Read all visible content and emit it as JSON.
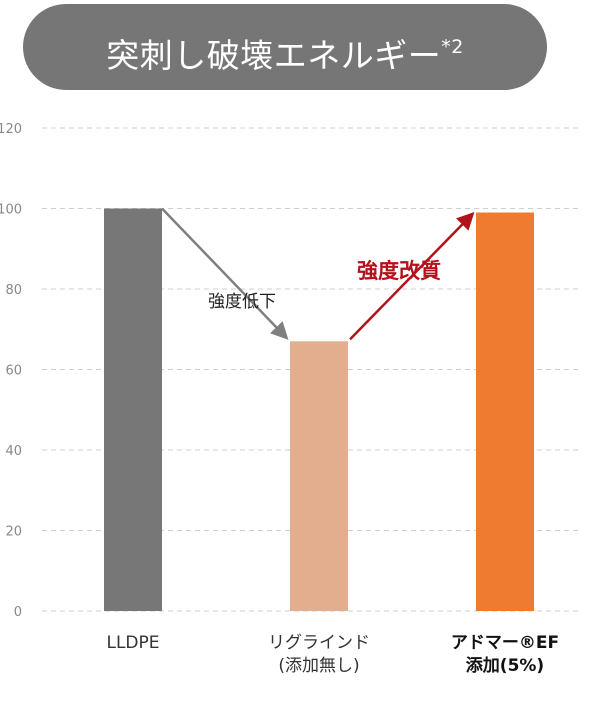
{
  "title": {
    "text": "突刺し破壊エネルギー",
    "note": "*2"
  },
  "chart_data": {
    "type": "bar",
    "categories": [
      [
        "LLDPE"
      ],
      [
        "リグラインド",
        "(添加無し)"
      ],
      [
        "アドマー®EF",
        "添加(5%)"
      ]
    ],
    "values": [
      100,
      67,
      99
    ],
    "bar_colors": [
      "#777777",
      "#e2ae8d",
      "#ee7b30"
    ],
    "ylim": [
      0,
      120
    ],
    "yticks": [
      0,
      20,
      40,
      60,
      80,
      100,
      120
    ],
    "grid": true,
    "annotations": [
      {
        "text": "強度低下",
        "color": "#7f7f7f",
        "from_bar": 0,
        "to_bar": 1
      },
      {
        "text": "強度改質",
        "color": "#b3121a",
        "from_bar": 1,
        "to_bar": 2
      }
    ]
  }
}
